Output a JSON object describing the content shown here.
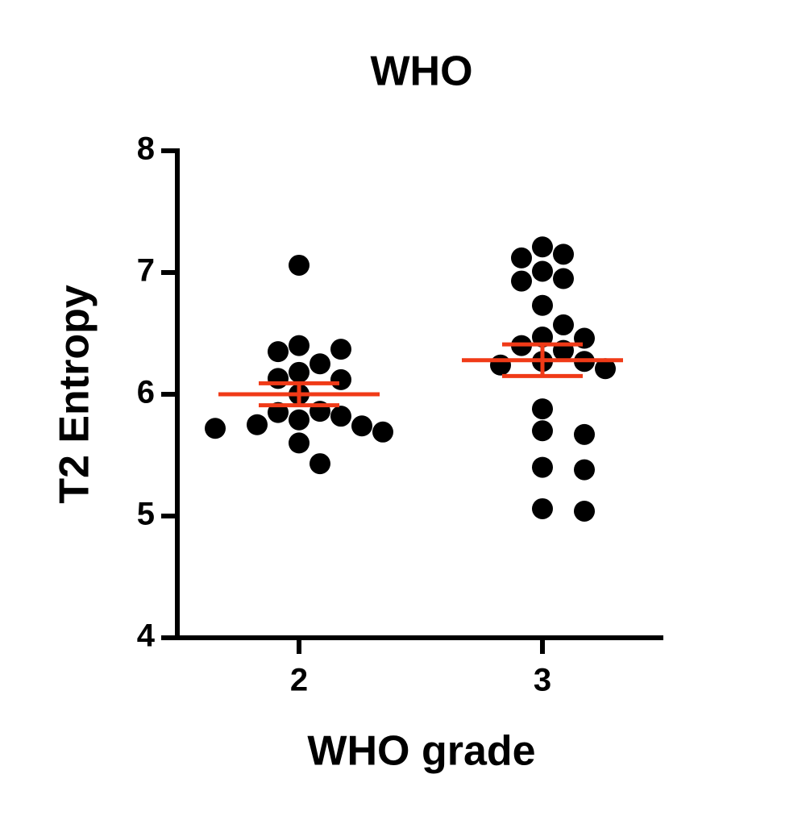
{
  "chart_data": {
    "type": "dot",
    "title": "WHO",
    "x_label": "WHO grade",
    "y_label": "T2 Entropy",
    "categories": [
      "2",
      "3"
    ],
    "groups": [
      {
        "values": [
          7.06,
          6.4,
          6.35,
          6.37,
          6.18,
          6.25,
          6.12,
          6.13,
          6.0,
          5.85,
          5.82,
          5.69,
          5.75,
          5.74,
          5.79,
          5.86,
          5.72,
          5.6,
          5.43
        ],
        "mean": 6.0,
        "sem": 0.09
      },
      {
        "values": [
          7.21,
          7.12,
          6.95,
          6.93,
          7.01,
          7.15,
          6.73,
          6.57,
          6.46,
          6.47,
          6.36,
          6.4,
          6.27,
          6.21,
          6.27,
          6.24,
          5.88,
          5.7,
          5.67,
          5.38,
          5.4,
          5.04,
          5.06
        ],
        "mean": 6.28,
        "sem": 0.13
      }
    ],
    "color": "#000000",
    "summary_color": "#f03a17",
    "ylim": [
      4,
      8
    ],
    "yticks": [
      4,
      5,
      6,
      7,
      8
    ]
  }
}
